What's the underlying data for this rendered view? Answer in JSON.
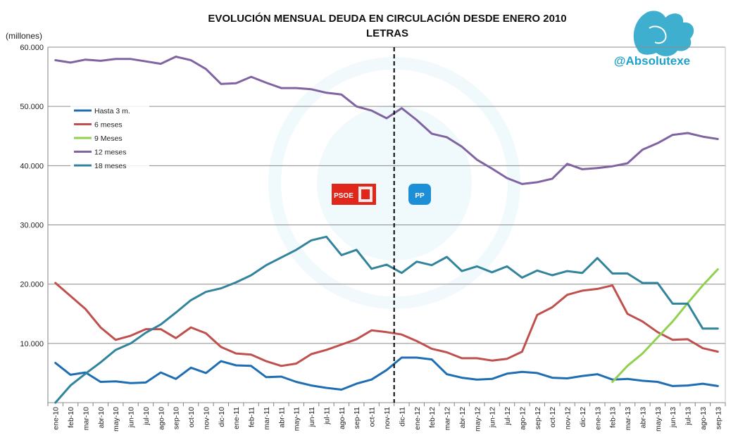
{
  "watermark": {
    "handle": "@Absolutexe"
  },
  "badges": {
    "left": "PSOE",
    "right": "PP"
  },
  "chart_data": {
    "type": "line",
    "title": "EVOLUCIÓN MENSUAL DEUDA EN CIRCULACIÓN DESDE ENERO 2010",
    "subtitle": "LETRAS",
    "ylabel": "(millones)",
    "ylim": [
      0,
      60000
    ],
    "yticks": [
      "60.000",
      "50.000",
      "40.000",
      "30.000",
      "20.000",
      "10.000",
      ""
    ],
    "grid": true,
    "legend_position": "left",
    "divider_after_category": "nov-11",
    "categories": [
      "ene-10",
      "feb-10",
      "mar-10",
      "abr-10",
      "may-10",
      "jun-10",
      "jul-10",
      "ago-10",
      "sep-10",
      "oct-10",
      "nov-10",
      "dic-10",
      "ene-11",
      "feb-11",
      "mar-11",
      "abr-11",
      "may-11",
      "jun-11",
      "jul-11",
      "ago-11",
      "sep-11",
      "oct-11",
      "nov-11",
      "dic-11",
      "ene-12",
      "feb-12",
      "mar-12",
      "abr-12",
      "may-12",
      "jun-12",
      "jul-12",
      "ago-12",
      "sep-12",
      "oct-12",
      "nov-12",
      "dic-12",
      "ene-13",
      "feb-13",
      "mar-13",
      "abr-13",
      "may-13",
      "jun-13",
      "jul-13",
      "ago-13",
      "sep-13"
    ],
    "series": [
      {
        "name": "Hasta 3 m.",
        "color": "#1f6eb4",
        "values": [
          6700,
          4700,
          5100,
          3500,
          3600,
          3300,
          3400,
          5100,
          4000,
          5900,
          5000,
          7000,
          6300,
          6200,
          4300,
          4400,
          3500,
          2900,
          2500,
          2200,
          3200,
          3900,
          5500,
          7600,
          7600,
          7300,
          4800,
          4200,
          3900,
          4000,
          4900,
          5200,
          5000,
          4200,
          4100,
          4500,
          4800,
          3900,
          4000,
          3700,
          3500,
          2800,
          2900,
          3200,
          2800
        ]
      },
      {
        "name": "6 meses",
        "color": "#c0504d",
        "values": [
          20200,
          18000,
          15800,
          12700,
          10600,
          11300,
          12400,
          12400,
          10900,
          12700,
          11700,
          9400,
          8300,
          8100,
          7000,
          6200,
          6600,
          8200,
          8900,
          9800,
          10700,
          12200,
          11900,
          11500,
          10400,
          9100,
          8500,
          7500,
          7500,
          7100,
          7400,
          8600,
          14800,
          16100,
          18200,
          18900,
          19200,
          19800,
          15000,
          13700,
          11900,
          10600,
          10700,
          9200,
          8600
        ]
      },
      {
        "name": "9 Meses",
        "color": "#92d050",
        "values": [
          null,
          null,
          null,
          null,
          null,
          null,
          null,
          null,
          null,
          null,
          null,
          null,
          null,
          null,
          null,
          null,
          null,
          null,
          null,
          null,
          null,
          null,
          null,
          null,
          null,
          null,
          null,
          null,
          null,
          null,
          null,
          null,
          null,
          null,
          null,
          null,
          null,
          3500,
          6200,
          8300,
          11000,
          13700,
          16800,
          19800,
          22500
        ]
      },
      {
        "name": "12 meses",
        "color": "#8064a2",
        "values": [
          57800,
          57400,
          57900,
          57700,
          58000,
          58000,
          57600,
          57200,
          58400,
          57800,
          56300,
          53800,
          53900,
          55000,
          54000,
          53100,
          53100,
          52900,
          52300,
          52000,
          50000,
          49300,
          48000,
          49700,
          47700,
          45400,
          44800,
          43200,
          41000,
          39500,
          37900,
          36900,
          37200,
          37800,
          40300,
          39400,
          39600,
          39900,
          40400,
          42700,
          43800,
          45200,
          45500,
          44900,
          44500
        ]
      },
      {
        "name": "18 meses",
        "color": "#31849b",
        "values": [
          0,
          2900,
          4900,
          6800,
          8900,
          10000,
          11800,
          13200,
          15200,
          17300,
          18700,
          19300,
          20300,
          21500,
          23200,
          24500,
          25800,
          27400,
          28000,
          24900,
          25800,
          22600,
          23300,
          21900,
          23800,
          23200,
          24600,
          22200,
          23000,
          22000,
          23000,
          21100,
          22300,
          21500,
          22200,
          21900,
          24400,
          21800,
          21800,
          20200,
          20200,
          16700,
          16700,
          12500,
          12500
        ]
      }
    ]
  }
}
